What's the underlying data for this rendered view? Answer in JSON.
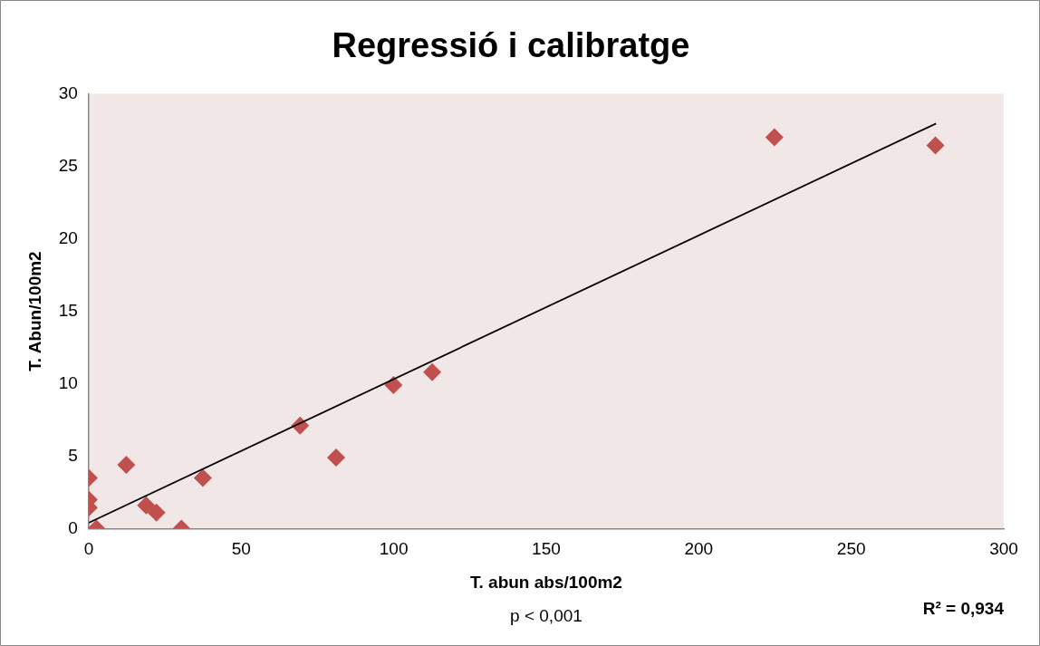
{
  "chart_data": {
    "type": "scatter",
    "title": "Regressió i calibratge",
    "xlabel": "T. abun abs/100m2",
    "ylabel": "T. Abun/100m2",
    "xlim": [
      0,
      300
    ],
    "xticks": [
      0,
      50,
      100,
      150,
      200,
      250,
      300
    ],
    "ylim": [
      0,
      30
    ],
    "yticks": [
      0,
      5,
      10,
      15,
      20,
      25,
      30
    ],
    "grid": false,
    "legend": false,
    "marker": "diamond",
    "series": [
      {
        "color": "#c0504d",
        "x": [
          0,
          0,
          0,
          2.5,
          12.3,
          18.8,
          22.2,
          30.4,
          37.4,
          69.3,
          81.1,
          99.9,
          112.6,
          224.8,
          277.6
        ],
        "values": [
          3.5,
          2.0,
          1.45,
          0,
          4.4,
          1.6,
          1.1,
          0,
          3.5,
          7.1,
          4.9,
          9.9,
          10.8,
          27,
          26.45
        ]
      },
      {
        "type": "line",
        "marker": "none",
        "color": "#000000",
        "x": [
          0,
          277.8
        ],
        "values": [
          0.4,
          27.95
        ]
      }
    ],
    "annotations": [
      "p < 0,001",
      "R² = 0,934"
    ]
  }
}
